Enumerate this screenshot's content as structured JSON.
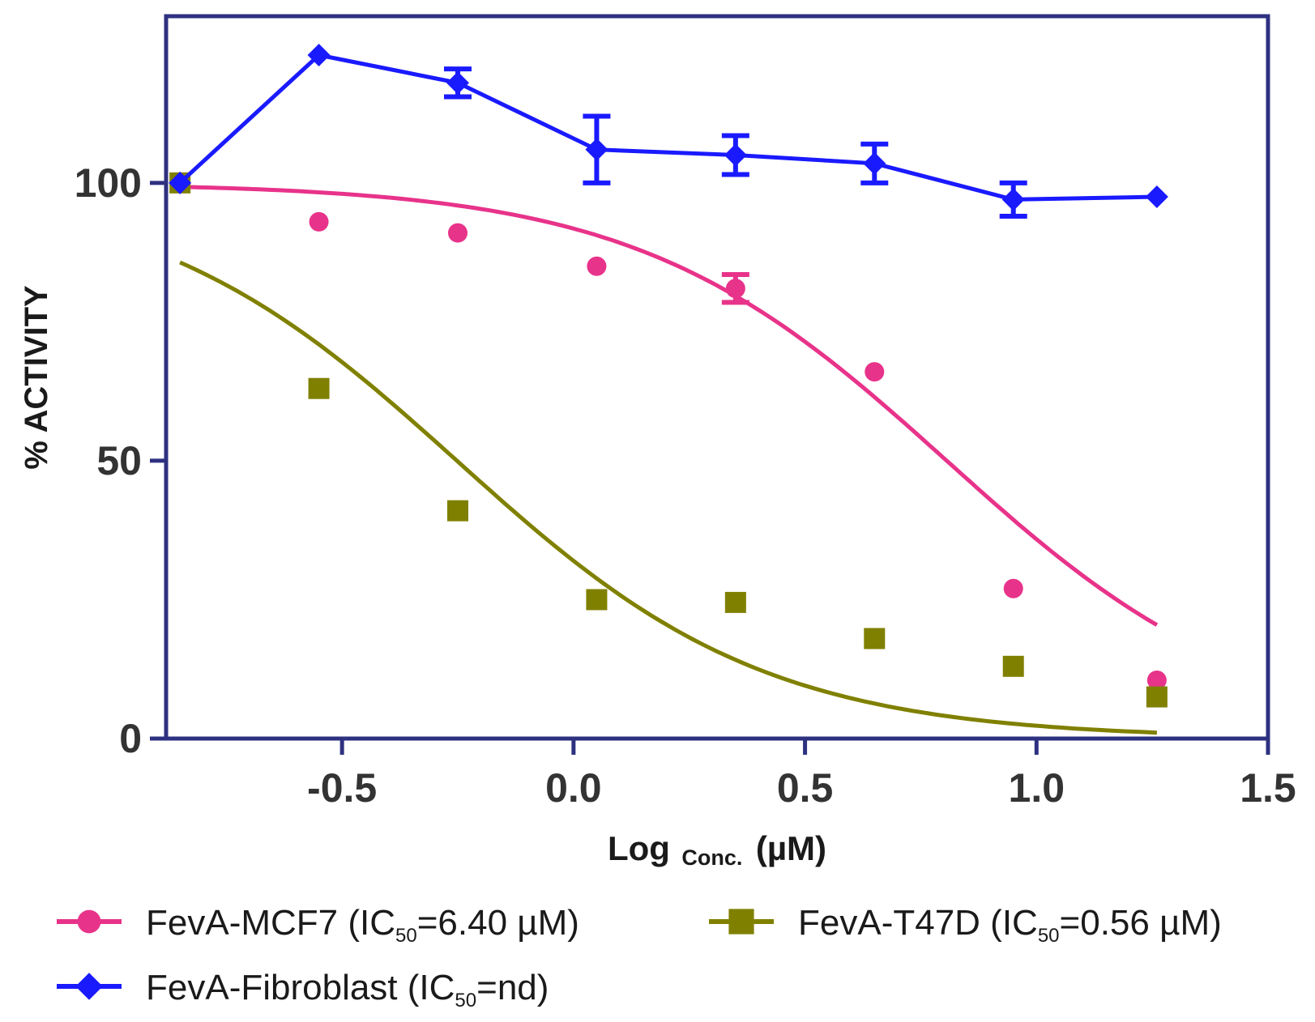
{
  "chart_data": {
    "type": "scatter",
    "title": "",
    "xlabel": {
      "main": "Log",
      "sub": "Conc.",
      "unit": "(µM)"
    },
    "ylabel": "% ACTIVITY",
    "xlim": [
      -0.88,
      1.5
    ],
    "ylim": [
      0,
      130
    ],
    "x_ticks": [
      -0.5,
      0.0,
      0.5,
      1.0,
      1.5
    ],
    "x_tick_labels": [
      "-0.5",
      "0.0",
      "0.5",
      "1.0",
      "1.5"
    ],
    "y_ticks": [
      0,
      50,
      100
    ],
    "y_tick_labels": [
      "0",
      "50",
      "100"
    ],
    "grid": false,
    "legend_position": "bottom",
    "series": [
      {
        "name": "FevA-MCF7",
        "ic_label": "IC",
        "ic_sub": "50",
        "ic_value": "=6.40 µM)",
        "legend_prefix": "FevA-MCF7 (",
        "color": "#e8338a",
        "marker": "circle",
        "x": [
          -0.85,
          -0.55,
          -0.25,
          0.05,
          0.35,
          0.65,
          0.95,
          1.26
        ],
        "y": [
          100,
          93,
          91,
          85,
          81,
          66,
          27,
          10.5
        ],
        "err": [
          0,
          0,
          0,
          0,
          2.5,
          0,
          0,
          0
        ],
        "fit": {
          "top": 100,
          "bottom": 0,
          "logIC50": 0.806,
          "hill": -1.3,
          "x_start": -0.85,
          "x_end": 1.26
        }
      },
      {
        "name": "FevA-T47D",
        "ic_label": "IC",
        "ic_sub": "50",
        "ic_value": "=0.56 µM)",
        "legend_prefix": "FevA-T47D (",
        "color": "#808000",
        "marker": "square",
        "x": [
          -0.85,
          -0.55,
          -0.25,
          0.05,
          0.35,
          0.65,
          0.95,
          1.26
        ],
        "y": [
          100,
          63,
          41,
          25,
          24.5,
          18,
          13,
          7.5
        ],
        "err": [
          0,
          0,
          0,
          0,
          0,
          0,
          0,
          0
        ],
        "fit": {
          "top": 100,
          "bottom": 0,
          "logIC50": -0.252,
          "hill": -1.3,
          "x_start": -0.85,
          "x_end": 1.26
        }
      },
      {
        "name": "FevA-Fibroblast",
        "ic_label": "IC",
        "ic_sub": "50",
        "ic_value": "=nd)",
        "legend_prefix": "FevA-Fibroblast (",
        "color": "#1a1aff",
        "marker": "diamond",
        "x": [
          -0.85,
          -0.55,
          -0.25,
          0.05,
          0.35,
          0.65,
          0.95,
          1.26
        ],
        "y": [
          100,
          123,
          118,
          106,
          105,
          103.5,
          97,
          97.5
        ],
        "err": [
          0,
          0,
          2.5,
          6,
          3.5,
          3.5,
          3,
          0
        ],
        "connect": true
      }
    ]
  }
}
